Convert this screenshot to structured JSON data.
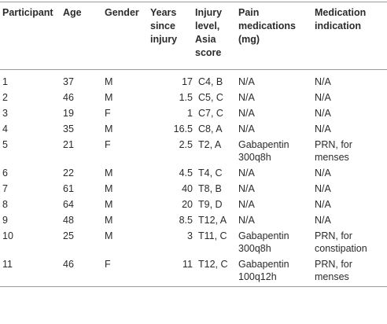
{
  "table": {
    "headers": [
      "Participant",
      "Age",
      "Gender",
      "Years\nsince\ninjury",
      "Injury\nlevel,\nAsia\nscore",
      "Pain\nmedications\n(mg)",
      "Medication\nindication"
    ],
    "rows": [
      [
        "1",
        "37",
        "M",
        "17",
        "C4, B",
        "N/A",
        "N/A"
      ],
      [
        "2",
        "46",
        "M",
        "1.5",
        "C5, C",
        "N/A",
        "N/A"
      ],
      [
        "3",
        "19",
        "F",
        "1",
        "C7, C",
        "N/A",
        "N/A"
      ],
      [
        "4",
        "35",
        "M",
        "16.5",
        "C8, A",
        "N/A",
        "N/A"
      ],
      [
        "5",
        "21",
        "F",
        "2.5",
        "T2, A",
        "Gabapentin\n300q8h",
        "PRN, for\nmenses"
      ],
      [
        "6",
        "22",
        "M",
        "4.5",
        "T4, C",
        "N/A",
        "N/A"
      ],
      [
        "7",
        "61",
        "M",
        "40",
        "T8, B",
        "N/A",
        "N/A"
      ],
      [
        "8",
        "64",
        "M",
        "20",
        "T9, D",
        "N/A",
        "N/A"
      ],
      [
        "9",
        "48",
        "M",
        "8.5",
        "T12, A",
        "N/A",
        "N/A"
      ],
      [
        "10",
        "25",
        "M",
        "3",
        "T11, C",
        "Gabapentin\n300q8h",
        "PRN, for\nconstipation"
      ],
      [
        "11",
        "46",
        "F",
        "11",
        "T12, C",
        "Gabapentin\n100q12h",
        "PRN, for\nmenses"
      ]
    ]
  }
}
